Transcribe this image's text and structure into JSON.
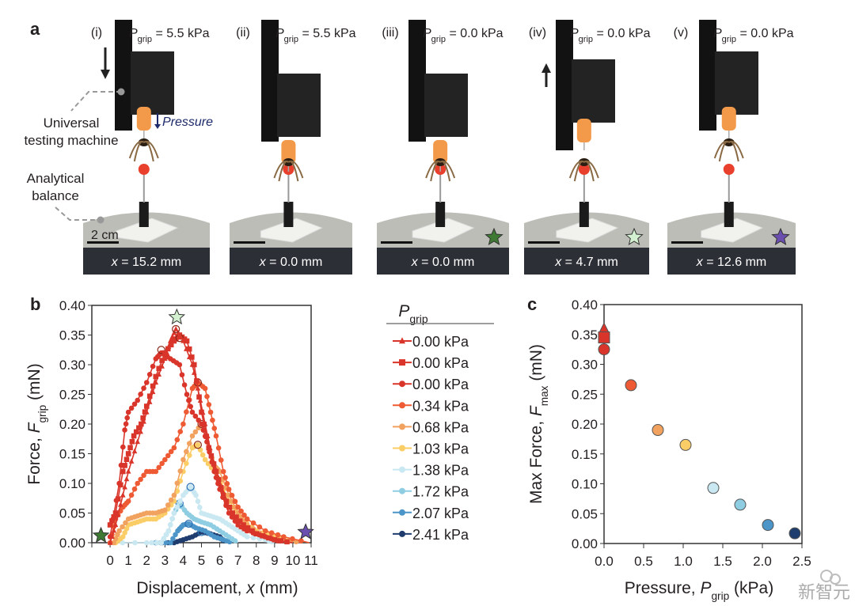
{
  "panel_a": {
    "letter": "a",
    "callouts": {
      "machine_line1": "Universal",
      "machine_line2": "testing machine",
      "balance_line1": "Analytical",
      "balance_line2": "balance",
      "pressure": "Pressure",
      "scale_bar": "2 cm"
    },
    "frames": [
      {
        "roman": "(i)",
        "p_sym": "P",
        "p_sub": "grip",
        "p_val": " = 5.5 kPa",
        "x_sym": "x",
        "x_val": " = 15.2 mm",
        "arrow": "down",
        "star": null
      },
      {
        "roman": "(ii)",
        "p_sym": "P",
        "p_sub": "grip",
        "p_val": " = 5.5 kPa",
        "x_sym": "x",
        "x_val": " = 0.0 mm",
        "arrow": null,
        "star": null
      },
      {
        "roman": "(iii)",
        "p_sym": "P",
        "p_sub": "grip",
        "p_val": " = 0.0 kPa",
        "x_sym": "x",
        "x_val": " = 0.0 mm",
        "arrow": null,
        "star": "#3f7a35"
      },
      {
        "roman": "(iv)",
        "p_sym": "P",
        "p_sub": "grip",
        "p_val": " = 0.0 kPa",
        "x_sym": "x",
        "x_val": " = 4.7 mm",
        "arrow": "up",
        "star": "#d3f0d0"
      },
      {
        "roman": "(v)",
        "p_sym": "P",
        "p_sub": "grip",
        "p_val": " = 0.0 kPa",
        "x_sym": "x",
        "x_val": " = 12.6 mm",
        "arrow": null,
        "star": "#6a4fb0"
      }
    ]
  },
  "chart_data": [
    {
      "panel": "b",
      "type": "line",
      "xlabel": "Displacement, x (mm)",
      "xlabel_parts": {
        "pre": "Displacement, ",
        "sym": "x",
        "post": " (mm)"
      },
      "ylabel_parts": {
        "pre": "Force, ",
        "sym": "F",
        "sub": "grip",
        "post": " (mN)"
      },
      "xlim": [
        -1,
        11
      ],
      "ylim": [
        0,
        0.4
      ],
      "xticks": [
        0,
        1,
        2,
        3,
        4,
        5,
        6,
        7,
        8,
        9,
        10,
        11
      ],
      "yticks": [
        "0.00",
        "0.05",
        "0.10",
        "0.15",
        "0.20",
        "0.25",
        "0.30",
        "0.35",
        "0.40"
      ],
      "legend_title": {
        "sym": "P",
        "sub": "grip"
      },
      "legend_position": "right-outside",
      "grid": false,
      "series": [
        {
          "name": "0.00 kPa",
          "marker": "triangle",
          "color": "#d9352a",
          "peak": [
            3.6,
            0.36
          ],
          "points": [
            [
              0,
              0
            ],
            [
              0.3,
              0.03
            ],
            [
              0.7,
              0.08
            ],
            [
              1,
              0.12
            ],
            [
              1.5,
              0.17
            ],
            [
              2,
              0.22
            ],
            [
              2.5,
              0.27
            ],
            [
              3,
              0.31
            ],
            [
              3.3,
              0.34
            ],
            [
              3.6,
              0.36
            ],
            [
              4,
              0.34
            ],
            [
              4.5,
              0.3
            ],
            [
              4.8,
              0.26
            ],
            [
              5.2,
              0.2
            ],
            [
              5.6,
              0.14
            ],
            [
              6,
              0.1
            ],
            [
              6.5,
              0.06
            ],
            [
              7,
              0.03
            ],
            [
              7.5,
              0.02
            ],
            [
              8.5,
              0.01
            ],
            [
              9.5,
              0
            ]
          ]
        },
        {
          "name": "0.00 kPa",
          "marker": "square",
          "color": "#d9352a",
          "peak": [
            3.8,
            0.345
          ],
          "points": [
            [
              0,
              0.03
            ],
            [
              0.3,
              0.05
            ],
            [
              0.7,
              0.12
            ],
            [
              1,
              0.15
            ],
            [
              1.3,
              0.18
            ],
            [
              1.7,
              0.2
            ],
            [
              2,
              0.23
            ],
            [
              2.5,
              0.28
            ],
            [
              3,
              0.32
            ],
            [
              3.5,
              0.34
            ],
            [
              3.8,
              0.35
            ],
            [
              4.2,
              0.34
            ],
            [
              4.6,
              0.3
            ],
            [
              5,
              0.22
            ],
            [
              5.4,
              0.16
            ],
            [
              5.8,
              0.12
            ],
            [
              6.2,
              0.08
            ],
            [
              6.7,
              0.05
            ],
            [
              7.3,
              0.03
            ],
            [
              8,
              0.015
            ],
            [
              9,
              0.005
            ],
            [
              10,
              0
            ]
          ]
        },
        {
          "name": "0.00 kPa",
          "marker": "circle",
          "color": "#d9352a",
          "peak": [
            2.8,
            0.325
          ],
          "points": [
            [
              0,
              0.01
            ],
            [
              0.5,
              0.1
            ],
            [
              0.8,
              0.19
            ],
            [
              1,
              0.22
            ],
            [
              1.5,
              0.24
            ],
            [
              2,
              0.27
            ],
            [
              2.5,
              0.31
            ],
            [
              2.8,
              0.32
            ],
            [
              3.3,
              0.31
            ],
            [
              3.8,
              0.3
            ],
            [
              4.2,
              0.25
            ],
            [
              4.5,
              0.22
            ],
            [
              5,
              0.2
            ],
            [
              5.3,
              0.17
            ],
            [
              5.7,
              0.12
            ],
            [
              6,
              0.09
            ],
            [
              6.5,
              0.05
            ],
            [
              7,
              0.03
            ],
            [
              7.5,
              0.02
            ],
            [
              8.5,
              0.01
            ],
            [
              9.5,
              0
            ]
          ]
        },
        {
          "name": "0.34 kPa",
          "marker": "circle",
          "color": "#ee5a33",
          "peak": [
            4.8,
            0.27
          ],
          "points": [
            [
              0,
              0
            ],
            [
              0.3,
              0.04
            ],
            [
              0.7,
              0.06
            ],
            [
              1,
              0.07
            ],
            [
              1.5,
              0.1
            ],
            [
              2,
              0.12
            ],
            [
              2.5,
              0.12
            ],
            [
              3,
              0.14
            ],
            [
              3.5,
              0.16
            ],
            [
              4,
              0.2
            ],
            [
              4.5,
              0.26
            ],
            [
              4.8,
              0.27
            ],
            [
              5.2,
              0.26
            ],
            [
              5.5,
              0.22
            ],
            [
              5.8,
              0.18
            ],
            [
              6.2,
              0.12
            ],
            [
              6.5,
              0.09
            ],
            [
              7,
              0.06
            ],
            [
              7.5,
              0.04
            ],
            [
              8.5,
              0.02
            ],
            [
              9.5,
              0.01
            ],
            [
              10.9,
              0
            ]
          ]
        },
        {
          "name": "0.68 kPa",
          "marker": "circle",
          "color": "#f2a25f",
          "peak": [
            5.0,
            0.2
          ],
          "points": [
            [
              0.2,
              0
            ],
            [
              0.5,
              0.02
            ],
            [
              1,
              0.04
            ],
            [
              1.5,
              0.045
            ],
            [
              2,
              0.05
            ],
            [
              2.5,
              0.05
            ],
            [
              3,
              0.055
            ],
            [
              3.5,
              0.08
            ],
            [
              4,
              0.14
            ],
            [
              4.5,
              0.18
            ],
            [
              5,
              0.2
            ],
            [
              5.3,
              0.17
            ],
            [
              5.7,
              0.13
            ],
            [
              6,
              0.12
            ],
            [
              6.5,
              0.08
            ],
            [
              7,
              0.05
            ],
            [
              7.5,
              0.03
            ],
            [
              8.5,
              0.01
            ],
            [
              9.5,
              0.005
            ],
            [
              10.5,
              0
            ]
          ]
        },
        {
          "name": "1.03 kPa",
          "marker": "circle",
          "color": "#fbcd66",
          "peak": [
            4.8,
            0.165
          ],
          "points": [
            [
              0.3,
              0
            ],
            [
              0.7,
              0.01
            ],
            [
              1,
              0.03
            ],
            [
              1.5,
              0.035
            ],
            [
              2,
              0.04
            ],
            [
              2.5,
              0.04
            ],
            [
              3,
              0.05
            ],
            [
              3.5,
              0.07
            ],
            [
              4,
              0.12
            ],
            [
              4.5,
              0.16
            ],
            [
              4.8,
              0.165
            ],
            [
              5.2,
              0.14
            ],
            [
              5.7,
              0.12
            ],
            [
              6.2,
              0.09
            ],
            [
              6.7,
              0.06
            ],
            [
              7.2,
              0.04
            ],
            [
              8,
              0.02
            ],
            [
              9,
              0.01
            ],
            [
              10,
              0
            ]
          ]
        },
        {
          "name": "1.38 kPa",
          "marker": "circle",
          "color": "#c9e8f2",
          "peak": [
            4.4,
            0.094
          ],
          "points": [
            [
              0,
              0
            ],
            [
              2,
              0
            ],
            [
              2.8,
              0
            ],
            [
              3.2,
              0.02
            ],
            [
              3.5,
              0.05
            ],
            [
              4,
              0.08
            ],
            [
              4.4,
              0.094
            ],
            [
              4.7,
              0.08
            ],
            [
              5,
              0.05
            ],
            [
              5.5,
              0.045
            ],
            [
              6,
              0.04
            ],
            [
              6.5,
              0.03
            ],
            [
              7,
              0.02
            ],
            [
              7.5,
              0.01
            ],
            [
              8.5,
              0.005
            ],
            [
              9,
              0
            ]
          ]
        },
        {
          "name": "1.72 kPa",
          "marker": "circle",
          "color": "#8fcde2",
          "peak": [
            3.8,
            0.066
          ],
          "points": [
            [
              2.8,
              0
            ],
            [
              3.2,
              0.02
            ],
            [
              3.5,
              0.05
            ],
            [
              3.8,
              0.066
            ],
            [
              4.2,
              0.05
            ],
            [
              4.6,
              0.04
            ],
            [
              5,
              0.035
            ],
            [
              5.5,
              0.03
            ],
            [
              6,
              0.02
            ],
            [
              6.5,
              0.01
            ],
            [
              7,
              0
            ]
          ]
        },
        {
          "name": "2.07 kPa",
          "marker": "circle",
          "color": "#4b95c8",
          "peak": [
            4.3,
            0.032
          ],
          "points": [
            [
              2.5,
              0
            ],
            [
              3.3,
              0
            ],
            [
              3.7,
              0.02
            ],
            [
              4,
              0.03
            ],
            [
              4.3,
              0.032
            ],
            [
              4.7,
              0.025
            ],
            [
              5.2,
              0.02
            ],
            [
              5.7,
              0.01
            ],
            [
              6.2,
              0.005
            ],
            [
              6.7,
              0
            ]
          ]
        },
        {
          "name": "2.41 kPa",
          "marker": "circle",
          "color": "#1e3d6e",
          "peak": [
            5.0,
            0.018
          ],
          "points": [
            [
              2.5,
              0
            ],
            [
              3.5,
              0
            ],
            [
              4,
              0.005
            ],
            [
              4.5,
              0.01
            ],
            [
              5,
              0.018
            ],
            [
              5.5,
              0.015
            ],
            [
              6,
              0.01
            ],
            [
              6.3,
              0
            ]
          ]
        }
      ],
      "annotations": [
        {
          "type": "star",
          "x": -0.5,
          "y": 0.012,
          "color": "#3f7a35"
        },
        {
          "type": "star",
          "x": 3.65,
          "y": 0.38,
          "color": "#d3f0d0"
        },
        {
          "type": "star",
          "x": 10.7,
          "y": 0.018,
          "color": "#6a4fb0"
        }
      ]
    },
    {
      "panel": "c",
      "type": "scatter",
      "xlabel_parts": {
        "pre": "Pressure, ",
        "sym": "P",
        "sub": "grip",
        "post": " (kPa)"
      },
      "ylabel_parts": {
        "pre": "Max Force, ",
        "sym": "F",
        "sub": "max",
        "post": " (mN)"
      },
      "xlim": [
        0,
        2.5
      ],
      "ylim": [
        0,
        0.4
      ],
      "xticks": [
        "0.0",
        "0.5",
        "1.0",
        "1.5",
        "2.0",
        "2.5"
      ],
      "yticks": [
        "0.00",
        "0.05",
        "0.10",
        "0.15",
        "0.20",
        "0.25",
        "0.30",
        "0.35",
        "0.40"
      ],
      "grid": false,
      "points": [
        {
          "x": 0,
          "y": 0.358,
          "marker": "triangle",
          "color": "#d9352a"
        },
        {
          "x": 0,
          "y": 0.345,
          "marker": "square",
          "color": "#d9352a"
        },
        {
          "x": 0,
          "y": 0.325,
          "marker": "circle",
          "color": "#d9352a"
        },
        {
          "x": 0.34,
          "y": 0.265,
          "marker": "circle",
          "color": "#ee5a33"
        },
        {
          "x": 0.68,
          "y": 0.19,
          "marker": "circle",
          "color": "#f2a25f"
        },
        {
          "x": 1.03,
          "y": 0.165,
          "marker": "circle",
          "color": "#fbcd66"
        },
        {
          "x": 1.38,
          "y": 0.093,
          "marker": "circle",
          "color": "#c9e8f2"
        },
        {
          "x": 1.72,
          "y": 0.065,
          "marker": "circle",
          "color": "#8fcde2"
        },
        {
          "x": 2.07,
          "y": 0.031,
          "marker": "circle",
          "color": "#4b95c8"
        },
        {
          "x": 2.41,
          "y": 0.017,
          "marker": "circle",
          "color": "#1e3d6e"
        }
      ]
    }
  ],
  "panel_letters": {
    "b": "b",
    "c": "c"
  },
  "watermark": "新智元"
}
